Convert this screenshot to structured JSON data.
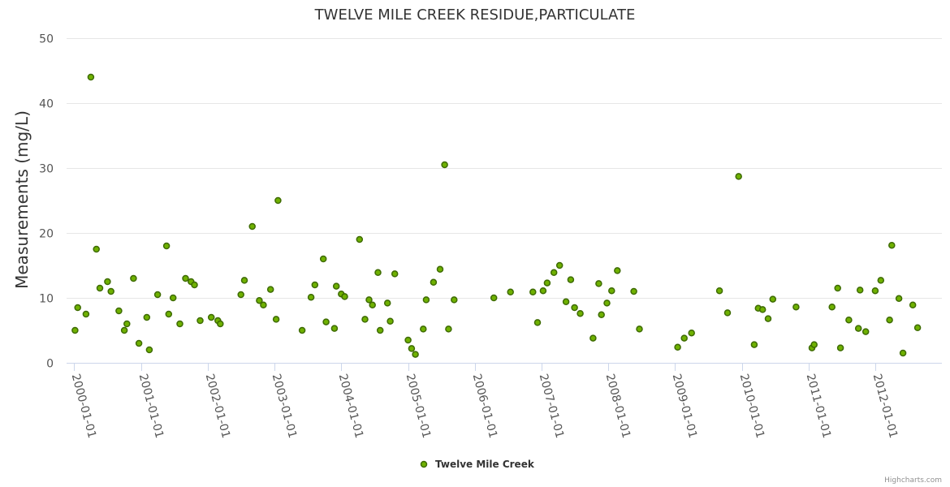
{
  "chart_data": {
    "type": "scatter",
    "title": "TWELVE MILE CREEK RESIDUE,PARTICULATE",
    "xlabel": "",
    "ylabel": "Measurements (mg/L)",
    "ylim": [
      0,
      50
    ],
    "yticks": [
      0,
      10,
      20,
      30,
      40,
      50
    ],
    "xlim": [
      "1999-11-20",
      "2012-12-31"
    ],
    "xticks": [
      "2000-01-01",
      "2001-01-01",
      "2002-01-01",
      "2003-01-01",
      "2004-01-01",
      "2005-01-01",
      "2006-01-01",
      "2007-01-01",
      "2008-01-01",
      "2009-01-01",
      "2010-01-01",
      "2011-01-01",
      "2012-01-01"
    ],
    "grid": true,
    "legend_position": "bottom-center",
    "series": [
      {
        "name": "Twelve Mile Creek",
        "color": "#6fb100",
        "edge_color": "#3d6a00",
        "points": [
          [
            "2000-01-05",
            5.0
          ],
          [
            "2000-01-20",
            8.5
          ],
          [
            "2000-03-05",
            7.5
          ],
          [
            "2000-04-01",
            44.0
          ],
          [
            "2000-05-01",
            17.5
          ],
          [
            "2000-05-20",
            11.5
          ],
          [
            "2000-07-01",
            12.5
          ],
          [
            "2000-07-20",
            11.0
          ],
          [
            "2000-09-01",
            8.0
          ],
          [
            "2000-10-01",
            5.0
          ],
          [
            "2000-10-15",
            6.0
          ],
          [
            "2000-11-20",
            13.0
          ],
          [
            "2000-12-20",
            3.0
          ],
          [
            "2001-02-01",
            7.0
          ],
          [
            "2001-02-15",
            2.0
          ],
          [
            "2001-04-01",
            10.5
          ],
          [
            "2001-05-20",
            18.0
          ],
          [
            "2001-06-01",
            7.5
          ],
          [
            "2001-06-25",
            10.0
          ],
          [
            "2001-08-01",
            6.0
          ],
          [
            "2001-09-01",
            13.0
          ],
          [
            "2001-10-01",
            12.5
          ],
          [
            "2001-10-20",
            12.0
          ],
          [
            "2001-11-20",
            6.5
          ],
          [
            "2002-01-20",
            7.0
          ],
          [
            "2002-02-25",
            6.5
          ],
          [
            "2002-03-10",
            6.0
          ],
          [
            "2002-07-01",
            10.5
          ],
          [
            "2002-07-20",
            12.7
          ],
          [
            "2002-09-01",
            21.0
          ],
          [
            "2002-10-10",
            9.6
          ],
          [
            "2002-11-01",
            8.9
          ],
          [
            "2002-12-10",
            11.3
          ],
          [
            "2003-01-10",
            6.7
          ],
          [
            "2003-01-20",
            25.0
          ],
          [
            "2003-06-01",
            5.0
          ],
          [
            "2003-07-20",
            10.1
          ],
          [
            "2003-08-10",
            12.0
          ],
          [
            "2003-09-25",
            16.0
          ],
          [
            "2003-10-10",
            6.3
          ],
          [
            "2003-11-25",
            5.3
          ],
          [
            "2003-12-05",
            11.8
          ],
          [
            "2004-01-01",
            10.6
          ],
          [
            "2004-01-20",
            10.2
          ],
          [
            "2004-04-10",
            19.0
          ],
          [
            "2004-05-10",
            6.7
          ],
          [
            "2004-06-01",
            9.7
          ],
          [
            "2004-06-20",
            8.9
          ],
          [
            "2004-07-20",
            13.9
          ],
          [
            "2004-08-01",
            5.0
          ],
          [
            "2004-09-10",
            9.2
          ],
          [
            "2004-09-25",
            6.4
          ],
          [
            "2004-10-20",
            13.7
          ],
          [
            "2005-01-01",
            3.5
          ],
          [
            "2005-01-20",
            2.2
          ],
          [
            "2005-02-10",
            1.3
          ],
          [
            "2005-03-25",
            5.2
          ],
          [
            "2005-04-10",
            9.7
          ],
          [
            "2005-05-20",
            12.4
          ],
          [
            "2005-06-25",
            14.4
          ],
          [
            "2005-07-20",
            30.5
          ],
          [
            "2005-08-10",
            5.2
          ],
          [
            "2005-09-10",
            9.7
          ],
          [
            "2006-04-15",
            10.0
          ],
          [
            "2006-07-15",
            10.9
          ],
          [
            "2006-11-15",
            10.9
          ],
          [
            "2006-12-10",
            6.2
          ],
          [
            "2007-01-10",
            11.1
          ],
          [
            "2007-02-01",
            12.3
          ],
          [
            "2007-03-10",
            13.9
          ],
          [
            "2007-04-10",
            15.0
          ],
          [
            "2007-05-15",
            9.4
          ],
          [
            "2007-06-10",
            12.8
          ],
          [
            "2007-07-01",
            8.5
          ],
          [
            "2007-08-01",
            7.6
          ],
          [
            "2007-10-10",
            3.8
          ],
          [
            "2007-11-10",
            12.2
          ],
          [
            "2007-11-25",
            7.4
          ],
          [
            "2007-12-25",
            9.2
          ],
          [
            "2008-01-20",
            11.1
          ],
          [
            "2008-02-20",
            14.2
          ],
          [
            "2008-05-20",
            11.0
          ],
          [
            "2008-06-20",
            5.2
          ],
          [
            "2009-01-15",
            2.4
          ],
          [
            "2009-02-20",
            3.8
          ],
          [
            "2009-04-01",
            4.6
          ],
          [
            "2009-09-01",
            11.1
          ],
          [
            "2009-10-15",
            7.7
          ],
          [
            "2009-12-15",
            28.7
          ],
          [
            "2010-03-10",
            2.8
          ],
          [
            "2010-04-01",
            8.4
          ],
          [
            "2010-04-25",
            8.2
          ],
          [
            "2010-05-25",
            6.8
          ],
          [
            "2010-06-20",
            9.8
          ],
          [
            "2010-10-25",
            8.6
          ],
          [
            "2011-01-20",
            2.3
          ],
          [
            "2011-02-01",
            2.8
          ],
          [
            "2011-05-10",
            8.6
          ],
          [
            "2011-06-10",
            11.5
          ],
          [
            "2011-06-25",
            2.3
          ],
          [
            "2011-08-10",
            6.6
          ],
          [
            "2011-10-01",
            5.3
          ],
          [
            "2011-10-10",
            11.2
          ],
          [
            "2011-11-10",
            4.8
          ],
          [
            "2012-01-01",
            11.1
          ],
          [
            "2012-02-01",
            12.7
          ],
          [
            "2012-03-20",
            6.6
          ],
          [
            "2012-04-01",
            18.1
          ],
          [
            "2012-05-10",
            9.9
          ],
          [
            "2012-06-01",
            1.5
          ],
          [
            "2012-07-25",
            8.9
          ],
          [
            "2012-08-20",
            5.4
          ]
        ]
      }
    ]
  },
  "credits": "Highcharts.com"
}
